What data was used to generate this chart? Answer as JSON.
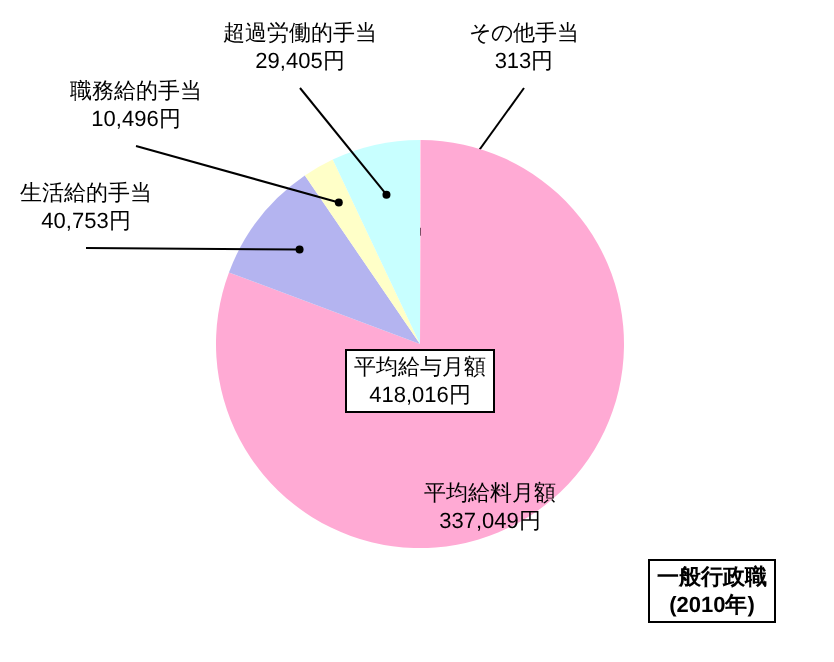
{
  "chart_data": {
    "type": "pie",
    "categories": [
      "その他手当",
      "平均給料月額",
      "生活給的手当",
      "職務給的手当",
      "超過労働的手当"
    ],
    "values": [
      313,
      337049,
      40753,
      10496,
      29405
    ],
    "value_labels": [
      "313円",
      "337,049円",
      "40,753円",
      "10,496円",
      "29,405円"
    ],
    "colors": [
      "#ffd0e8",
      "#ffaad4",
      "#b4b4f0",
      "#ffffc8",
      "#c8ffff"
    ],
    "annotations": [
      "平均給与月額\n418,016円",
      "一般行政職\n(2010年)"
    ]
  }
}
